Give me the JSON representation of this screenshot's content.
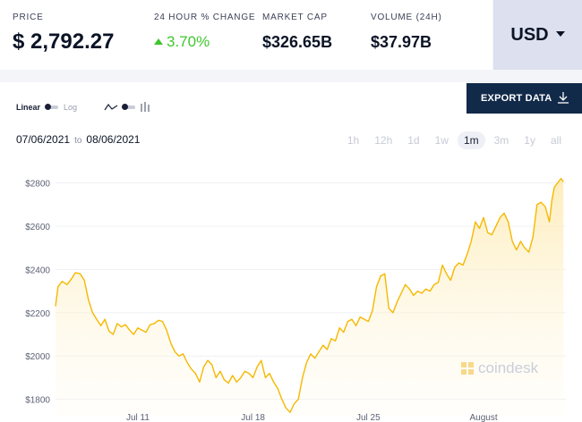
{
  "stats": {
    "price": {
      "label": "PRICE",
      "value": "$ 2,792.27"
    },
    "change": {
      "label": "24 HOUR % CHANGE",
      "value": "3.70%"
    },
    "market_cap": {
      "label": "MARKET CAP",
      "value": "$326.65B"
    },
    "volume": {
      "label": "VOLUME (24H)",
      "value": "$37.97B"
    }
  },
  "currency": {
    "label": "USD"
  },
  "controls": {
    "linear": "Linear",
    "log": "Log",
    "export": "EXPORT DATA"
  },
  "date_range": {
    "from": "07/06/2021",
    "to_label": "to",
    "to": "08/06/2021"
  },
  "ranges": [
    "1h",
    "12h",
    "1d",
    "1w",
    "1m",
    "3m",
    "1y",
    "all"
  ],
  "active_range": "1m",
  "watermark": "coindesk",
  "colors": {
    "line": "#f5b800",
    "positive": "#3fc62e",
    "export_bg": "#122a4a"
  },
  "chart_data": {
    "type": "area",
    "ylim": [
      1720,
      2860
    ],
    "y_ticks": [
      1800,
      2000,
      2200,
      2400,
      2600,
      2800
    ],
    "y_tick_labels": [
      "$1800",
      "$2000",
      "$2200",
      "$2400",
      "$2600",
      "$2800"
    ],
    "x_ticks": [
      {
        "day": 5,
        "label": "Jul 11"
      },
      {
        "day": 12,
        "label": "Jul 18"
      },
      {
        "day": 19,
        "label": "Jul 25"
      },
      {
        "day": 26,
        "label": "August"
      }
    ],
    "x_range": [
      0,
      31
    ],
    "series": [
      {
        "points": [
          [
            0.0,
            2230
          ],
          [
            0.15,
            2320
          ],
          [
            0.4,
            2345
          ],
          [
            0.7,
            2330
          ],
          [
            1.0,
            2360
          ],
          [
            1.2,
            2385
          ],
          [
            1.5,
            2380
          ],
          [
            1.75,
            2350
          ],
          [
            2.0,
            2260
          ],
          [
            2.25,
            2200
          ],
          [
            2.5,
            2170
          ],
          [
            2.75,
            2140
          ],
          [
            3.0,
            2170
          ],
          [
            3.25,
            2115
          ],
          [
            3.5,
            2100
          ],
          [
            3.75,
            2150
          ],
          [
            4.0,
            2135
          ],
          [
            4.25,
            2145
          ],
          [
            4.5,
            2120
          ],
          [
            4.75,
            2100
          ],
          [
            5.0,
            2130
          ],
          [
            5.25,
            2120
          ],
          [
            5.5,
            2110
          ],
          [
            5.75,
            2145
          ],
          [
            6.0,
            2150
          ],
          [
            6.25,
            2165
          ],
          [
            6.5,
            2160
          ],
          [
            6.75,
            2120
          ],
          [
            7.0,
            2060
          ],
          [
            7.25,
            2020
          ],
          [
            7.5,
            2000
          ],
          [
            7.75,
            2010
          ],
          [
            8.0,
            1970
          ],
          [
            8.25,
            1940
          ],
          [
            8.5,
            1920
          ],
          [
            8.75,
            1880
          ],
          [
            9.0,
            1950
          ],
          [
            9.25,
            1980
          ],
          [
            9.5,
            1960
          ],
          [
            9.75,
            1900
          ],
          [
            10.0,
            1930
          ],
          [
            10.25,
            1890
          ],
          [
            10.5,
            1875
          ],
          [
            10.75,
            1910
          ],
          [
            11.0,
            1880
          ],
          [
            11.25,
            1900
          ],
          [
            11.5,
            1930
          ],
          [
            11.75,
            1920
          ],
          [
            12.0,
            1900
          ],
          [
            12.25,
            1950
          ],
          [
            12.5,
            1980
          ],
          [
            12.75,
            1900
          ],
          [
            13.0,
            1920
          ],
          [
            13.25,
            1880
          ],
          [
            13.5,
            1850
          ],
          [
            13.75,
            1800
          ],
          [
            14.0,
            1760
          ],
          [
            14.25,
            1740
          ],
          [
            14.5,
            1780
          ],
          [
            14.75,
            1800
          ],
          [
            15.0,
            1900
          ],
          [
            15.25,
            1970
          ],
          [
            15.5,
            2010
          ],
          [
            15.75,
            1990
          ],
          [
            16.0,
            2020
          ],
          [
            16.25,
            2050
          ],
          [
            16.5,
            2030
          ],
          [
            16.75,
            2080
          ],
          [
            17.0,
            2070
          ],
          [
            17.25,
            2130
          ],
          [
            17.5,
            2110
          ],
          [
            17.75,
            2160
          ],
          [
            18.0,
            2170
          ],
          [
            18.25,
            2140
          ],
          [
            18.5,
            2180
          ],
          [
            18.75,
            2170
          ],
          [
            19.0,
            2160
          ],
          [
            19.25,
            2210
          ],
          [
            19.5,
            2320
          ],
          [
            19.75,
            2370
          ],
          [
            20.0,
            2380
          ],
          [
            20.25,
            2220
          ],
          [
            20.5,
            2200
          ],
          [
            20.75,
            2250
          ],
          [
            21.0,
            2290
          ],
          [
            21.25,
            2330
          ],
          [
            21.5,
            2310
          ],
          [
            21.75,
            2280
          ],
          [
            22.0,
            2300
          ],
          [
            22.25,
            2290
          ],
          [
            22.5,
            2310
          ],
          [
            22.75,
            2300
          ],
          [
            23.0,
            2330
          ],
          [
            23.25,
            2340
          ],
          [
            23.5,
            2420
          ],
          [
            23.75,
            2380
          ],
          [
            24.0,
            2350
          ],
          [
            24.25,
            2410
          ],
          [
            24.5,
            2430
          ],
          [
            24.75,
            2420
          ],
          [
            25.0,
            2470
          ],
          [
            25.25,
            2530
          ],
          [
            25.5,
            2620
          ],
          [
            25.75,
            2590
          ],
          [
            26.0,
            2640
          ],
          [
            26.25,
            2570
          ],
          [
            26.5,
            2560
          ],
          [
            26.75,
            2600
          ],
          [
            27.0,
            2640
          ],
          [
            27.25,
            2660
          ],
          [
            27.5,
            2620
          ],
          [
            27.75,
            2530
          ],
          [
            28.0,
            2490
          ],
          [
            28.25,
            2530
          ],
          [
            28.5,
            2500
          ],
          [
            28.75,
            2480
          ],
          [
            29.0,
            2550
          ],
          [
            29.25,
            2700
          ],
          [
            29.5,
            2710
          ],
          [
            29.75,
            2690
          ],
          [
            30.0,
            2620
          ],
          [
            30.15,
            2720
          ],
          [
            30.3,
            2780
          ],
          [
            30.5,
            2800
          ],
          [
            30.7,
            2820
          ],
          [
            30.85,
            2805
          ]
        ]
      }
    ],
    "grid": true
  }
}
